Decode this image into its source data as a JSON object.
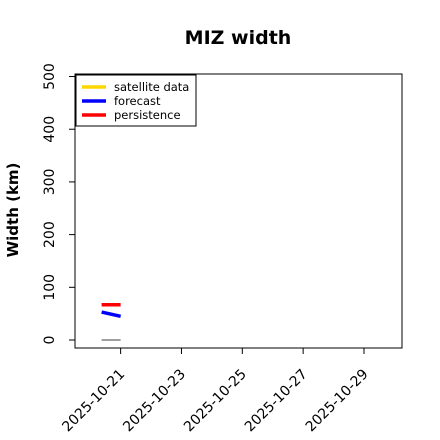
{
  "chart_data": {
    "type": "line",
    "title": "MIZ width",
    "xlabel": "",
    "ylabel": "Width (km)",
    "ylim": [
      0,
      520
    ],
    "yticks": [
      0,
      100,
      200,
      300,
      400,
      500
    ],
    "xlim": [
      "2025-10-19 12:00",
      "2025-10-30 06:00"
    ],
    "xticks": [
      "2025-10-21",
      "2025-10-23",
      "2025-10-25",
      "2025-10-27",
      "2025-10-29"
    ],
    "highlight_tick": "2025-10-21",
    "highlight_color": "#228B22",
    "grid": false,
    "legend_position": "top-left",
    "series": [
      {
        "name": "satellite data",
        "color": "#FFD700",
        "points": []
      },
      {
        "name": "forecast",
        "color": "#0000FF",
        "points": [
          [
            "2025-10-20 09:00",
            53
          ],
          [
            "2025-10-21 00:00",
            45
          ]
        ]
      },
      {
        "name": "persistence",
        "color": "#FF0000",
        "points": [
          [
            "2025-10-20 09:00",
            67
          ],
          [
            "2025-10-21 00:00",
            67
          ]
        ]
      }
    ],
    "reference_line": {
      "color": "#808080",
      "points": [
        [
          "2025-10-20 09:00",
          0
        ],
        [
          "2025-10-21 00:00",
          0
        ]
      ]
    }
  }
}
